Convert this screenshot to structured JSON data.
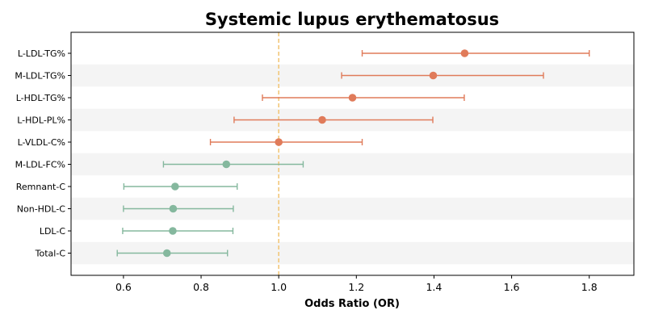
{
  "chart_data": {
    "type": "forest",
    "title": "Systemic lupus erythematosus",
    "xlabel": "Odds Ratio (OR)",
    "ylabel": "",
    "xlim": [
      0.465,
      1.915
    ],
    "xticks": [
      "0.6",
      "0.8",
      "1.0",
      "1.2",
      "1.4",
      "1.6",
      "1.8"
    ],
    "reference_line": 1.0,
    "colors": {
      "risk": "#e07b5a",
      "protective": "#85b89e",
      "reference": "#f2c77a",
      "band": "#f4f4f4",
      "axis": "#000000"
    },
    "rows": [
      {
        "label": "L-LDL-TG%",
        "or": 1.479,
        "lo": 1.215,
        "hi": 1.8,
        "group": "risk"
      },
      {
        "label": "M-LDL-TG%",
        "or": 1.398,
        "lo": 1.162,
        "hi": 1.682,
        "group": "risk"
      },
      {
        "label": "L-HDL-TG%",
        "or": 1.19,
        "lo": 0.958,
        "hi": 1.478,
        "group": "risk"
      },
      {
        "label": "L-HDL-PL%",
        "or": 1.112,
        "lo": 0.885,
        "hi": 1.397,
        "group": "risk"
      },
      {
        "label": "L-VLDL-C%",
        "or": 1.0,
        "lo": 0.824,
        "hi": 1.215,
        "group": "risk"
      },
      {
        "label": "M-LDL-FC%",
        "or": 0.865,
        "lo": 0.703,
        "hi": 1.063,
        "group": "protective"
      },
      {
        "label": "Remnant-C",
        "or": 0.733,
        "lo": 0.601,
        "hi": 0.893,
        "group": "protective"
      },
      {
        "label": "Non-HDL-C",
        "or": 0.728,
        "lo": 0.6,
        "hi": 0.883,
        "group": "protective"
      },
      {
        "label": "LDL-C",
        "or": 0.727,
        "lo": 0.598,
        "hi": 0.882,
        "group": "protective"
      },
      {
        "label": "Total-C",
        "or": 0.712,
        "lo": 0.584,
        "hi": 0.868,
        "group": "protective"
      }
    ]
  }
}
